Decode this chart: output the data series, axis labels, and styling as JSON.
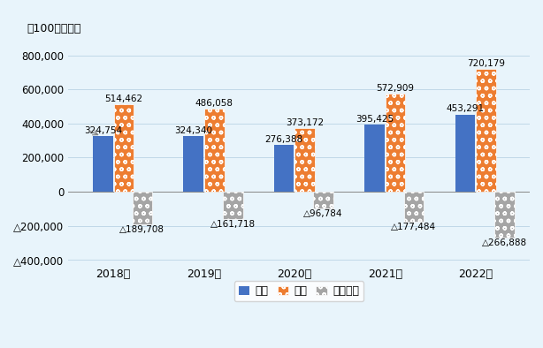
{
  "years": [
    "2018年",
    "2019年",
    "2020年",
    "2021年",
    "2022年"
  ],
  "exports": [
    324754,
    324340,
    276388,
    395425,
    453291
  ],
  "imports": [
    514462,
    486058,
    373172,
    572909,
    720179
  ],
  "trade_balance": [
    -189708,
    -161718,
    -96784,
    -177484,
    -266888
  ],
  "export_color": "#4472C4",
  "import_color": "#ED7D31",
  "balance_color": "#A5A5A5",
  "background_color": "#E8F4FB",
  "title_unit": "（100万ドル）",
  "ylim_min": -430000,
  "ylim_max": 860000,
  "yticks": [
    -400000,
    -200000,
    0,
    200000,
    400000,
    600000,
    800000
  ],
  "legend_labels": [
    "輸出",
    "輸入",
    "賿易収支"
  ]
}
